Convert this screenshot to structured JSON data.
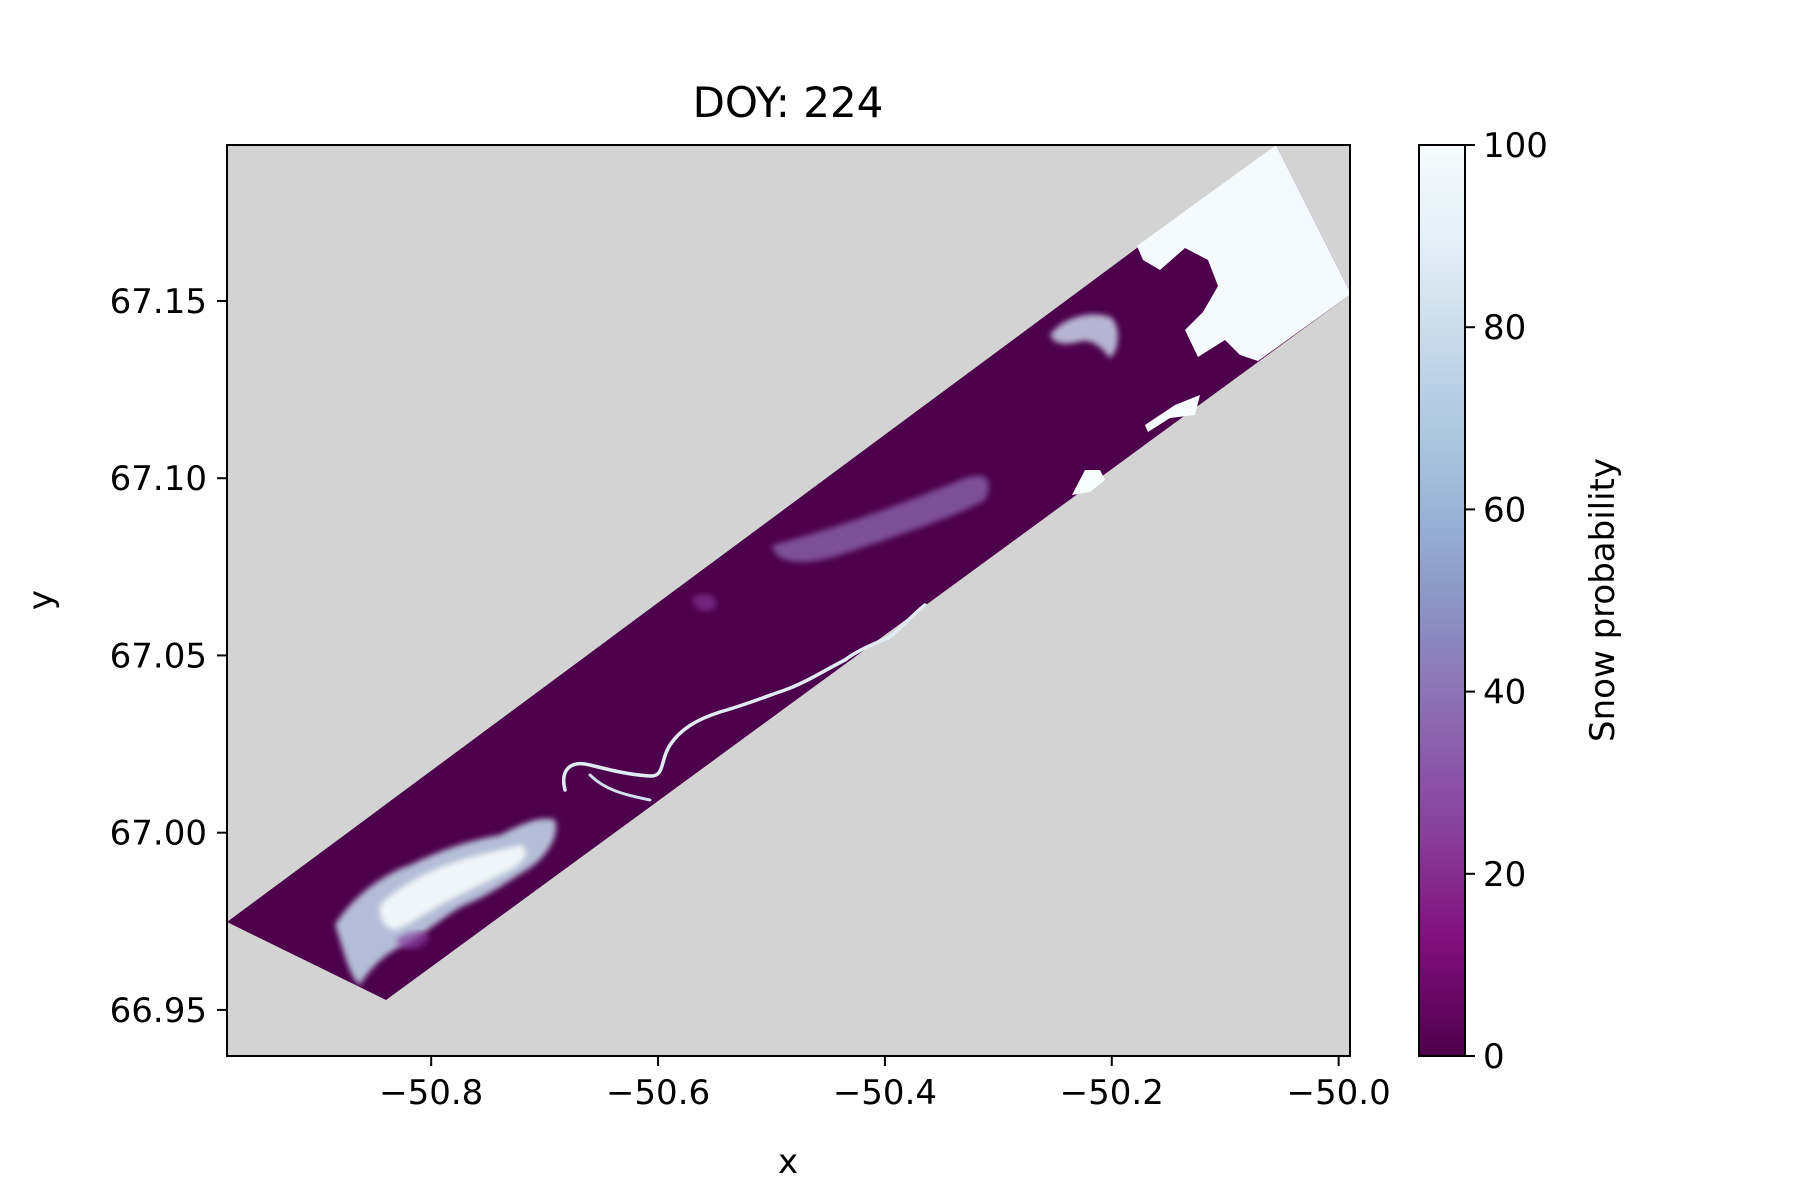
{
  "chart_data": {
    "type": "heatmap",
    "title": "DOY: 224",
    "xlabel": "x",
    "ylabel": "y",
    "xlim": [
      -50.98,
      -49.99
    ],
    "ylim": [
      66.937,
      67.194
    ],
    "xticks": [
      -50.8,
      -50.6,
      -50.4,
      -50.2,
      -50.0
    ],
    "xtick_labels": [
      "−50.8",
      "−50.6",
      "−50.4",
      "−50.2",
      "−50.0"
    ],
    "yticks": [
      66.95,
      67.0,
      67.05,
      67.1,
      67.15
    ],
    "ytick_labels": [
      "66.95",
      "67.00",
      "67.05",
      "67.10",
      "67.15"
    ],
    "background_color": "#d3d3d3",
    "grid": false,
    "colorbar": {
      "label": "Snow probability",
      "range": [
        0,
        100
      ],
      "ticks": [
        0,
        20,
        40,
        60,
        80,
        100
      ],
      "tick_labels": [
        "0",
        "20",
        "40",
        "60",
        "80",
        "100"
      ],
      "colormap": "BuPu_r",
      "colors": [
        "#4d004b",
        "#810f7c",
        "#88419d",
        "#8c6bb1",
        "#8c96c6",
        "#9ebcda",
        "#bfd3e6",
        "#e0ecf4",
        "#f7fcfd"
      ]
    },
    "swath_corners": [
      [
        -50.98,
        66.975
      ],
      [
        -50.055,
        67.194
      ],
      [
        -49.99,
        67.153
      ],
      [
        -50.835,
        66.955
      ]
    ],
    "features": [
      {
        "name": "snow-field-southwest",
        "center": [
          -50.79,
          66.985
        ],
        "value": 90
      },
      {
        "name": "river-channel",
        "center": [
          -50.55,
          67.03
        ],
        "value": 95
      },
      {
        "name": "snow-patch-central",
        "center": [
          -50.38,
          67.085
        ],
        "value": 40
      },
      {
        "name": "snow-patch-northeast",
        "center": [
          -50.22,
          67.145
        ],
        "value": 70
      },
      {
        "name": "high-probability-northeast-corner",
        "center": [
          -50.07,
          67.17
        ],
        "value": 100
      }
    ],
    "dominant_value": 0
  }
}
